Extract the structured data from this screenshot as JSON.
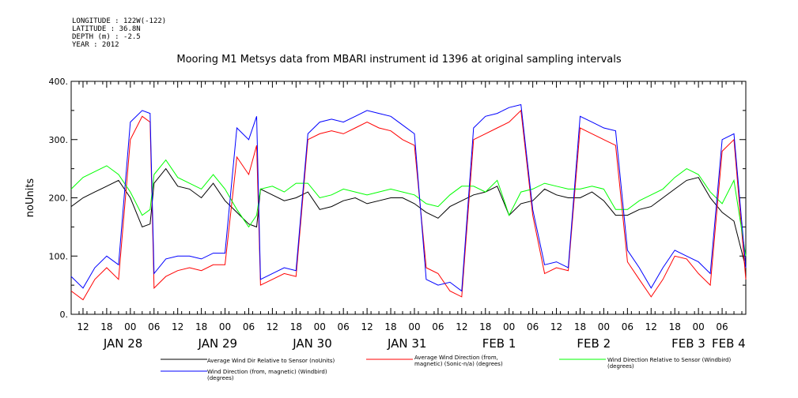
{
  "meta": {
    "longitude": "LONGITUDE : 122W(-122)",
    "latitude": "LATITUDE : 36.8N",
    "depth": "DEPTH (m) : -2.5",
    "year": "YEAR : 2012"
  },
  "chart_data": {
    "type": "line",
    "title": "Mooring M1 Metsys data from MBARI instrument id 1396 at original sampling intervals",
    "ylabel": "noUnits",
    "ylim": [
      0,
      400
    ],
    "yticks": [
      "0.",
      "100.",
      "200.",
      "300.",
      "400."
    ],
    "xlim": [
      0,
      171
    ],
    "xticks_hours": [
      "12",
      "18",
      "00",
      "06",
      "12",
      "18",
      "00",
      "06",
      "12",
      "18",
      "00",
      "06",
      "12",
      "18",
      "00",
      "06",
      "12",
      "18",
      "00",
      "06",
      "12",
      "18",
      "00",
      "06",
      "12",
      "18",
      "00",
      "06"
    ],
    "xticks_dates": [
      "JAN 28",
      "JAN 29",
      "JAN 30",
      "JAN 31",
      "FEB 1",
      "FEB 2",
      "FEB 3",
      "FEB 4"
    ],
    "grid": false,
    "legend_position": "bottom",
    "series": [
      {
        "name": "Average Wind Dir Relative to Sensor (noUnits)",
        "color": "#000000",
        "x": [
          0,
          3,
          6,
          9,
          12,
          15,
          18,
          20,
          21,
          24,
          27,
          30,
          33,
          36,
          39,
          42,
          45,
          47,
          48,
          51,
          54,
          57,
          60,
          63,
          66,
          69,
          72,
          75,
          78,
          81,
          84,
          87,
          90,
          93,
          96,
          99,
          102,
          105,
          108,
          111,
          114,
          117,
          120,
          123,
          126,
          129,
          132,
          135,
          138,
          141,
          144,
          147,
          150,
          153,
          156,
          159,
          162,
          165,
          168,
          171
        ],
        "y": [
          185,
          200,
          210,
          220,
          230,
          200,
          150,
          155,
          225,
          250,
          220,
          215,
          200,
          225,
          195,
          175,
          155,
          150,
          215,
          205,
          195,
          200,
          210,
          180,
          185,
          195,
          200,
          190,
          195,
          200,
          200,
          190,
          175,
          165,
          185,
          195,
          205,
          210,
          220,
          170,
          190,
          195,
          215,
          205,
          200,
          200,
          210,
          195,
          170,
          170,
          180,
          185,
          200,
          215,
          230,
          235,
          200,
          175,
          160,
          80
        ]
      },
      {
        "name": "Average Wind Direction (from, magnetic) (Sonic-n/a) (degrees)",
        "color": "#ff0000",
        "x": [
          0,
          3,
          6,
          9,
          12,
          15,
          18,
          20,
          21,
          24,
          27,
          30,
          33,
          36,
          39,
          42,
          45,
          47,
          48,
          51,
          54,
          57,
          60,
          63,
          66,
          69,
          72,
          75,
          78,
          81,
          84,
          87,
          90,
          93,
          96,
          99,
          102,
          105,
          108,
          111,
          114,
          117,
          120,
          123,
          126,
          129,
          132,
          135,
          138,
          141,
          144,
          147,
          150,
          153,
          156,
          159,
          162,
          165,
          168,
          171
        ],
        "y": [
          40,
          25,
          60,
          80,
          60,
          300,
          340,
          330,
          45,
          65,
          75,
          80,
          75,
          85,
          85,
          270,
          240,
          290,
          50,
          60,
          70,
          65,
          300,
          310,
          315,
          310,
          320,
          330,
          320,
          315,
          300,
          290,
          80,
          70,
          40,
          30,
          300,
          310,
          320,
          330,
          350,
          170,
          70,
          80,
          75,
          320,
          310,
          300,
          290,
          90,
          60,
          30,
          60,
          100,
          95,
          70,
          50,
          280,
          300,
          60
        ]
      },
      {
        "name": "Wind Direction Relative to Sensor (Windbird) (degrees)",
        "color": "#00ff00",
        "x": [
          0,
          3,
          6,
          9,
          12,
          15,
          18,
          20,
          21,
          24,
          27,
          30,
          33,
          36,
          39,
          42,
          45,
          47,
          48,
          51,
          54,
          57,
          60,
          63,
          66,
          69,
          72,
          75,
          78,
          81,
          84,
          87,
          90,
          93,
          96,
          99,
          102,
          105,
          108,
          111,
          114,
          117,
          120,
          123,
          126,
          129,
          132,
          135,
          138,
          141,
          144,
          147,
          150,
          153,
          156,
          159,
          162,
          165,
          168,
          171
        ],
        "y": [
          215,
          235,
          245,
          255,
          240,
          210,
          170,
          180,
          240,
          265,
          235,
          225,
          215,
          240,
          215,
          180,
          150,
          170,
          215,
          220,
          210,
          225,
          225,
          200,
          205,
          215,
          210,
          205,
          210,
          215,
          210,
          205,
          190,
          185,
          205,
          220,
          220,
          210,
          230,
          170,
          210,
          215,
          225,
          220,
          215,
          215,
          220,
          215,
          180,
          180,
          195,
          205,
          215,
          235,
          250,
          240,
          210,
          190,
          230,
          100
        ]
      },
      {
        "name": "Wind Direction (from, magnetic) (Windbird) (degrees)",
        "color": "#0000ff",
        "x": [
          0,
          3,
          6,
          9,
          12,
          15,
          18,
          20,
          21,
          24,
          27,
          30,
          33,
          36,
          39,
          42,
          45,
          47,
          48,
          51,
          54,
          57,
          60,
          63,
          66,
          69,
          72,
          75,
          78,
          81,
          84,
          87,
          90,
          93,
          96,
          99,
          102,
          105,
          108,
          111,
          114,
          117,
          120,
          123,
          126,
          129,
          132,
          135,
          138,
          141,
          144,
          147,
          150,
          153,
          156,
          159,
          162,
          165,
          168,
          171
        ],
        "y": [
          65,
          45,
          80,
          100,
          85,
          330,
          350,
          345,
          70,
          95,
          100,
          100,
          95,
          105,
          105,
          320,
          300,
          340,
          60,
          70,
          80,
          75,
          310,
          330,
          335,
          330,
          340,
          350,
          345,
          340,
          325,
          310,
          60,
          50,
          55,
          40,
          320,
          340,
          345,
          355,
          360,
          180,
          85,
          90,
          80,
          340,
          330,
          320,
          315,
          110,
          80,
          45,
          80,
          110,
          100,
          90,
          70,
          300,
          310,
          80
        ]
      }
    ]
  }
}
